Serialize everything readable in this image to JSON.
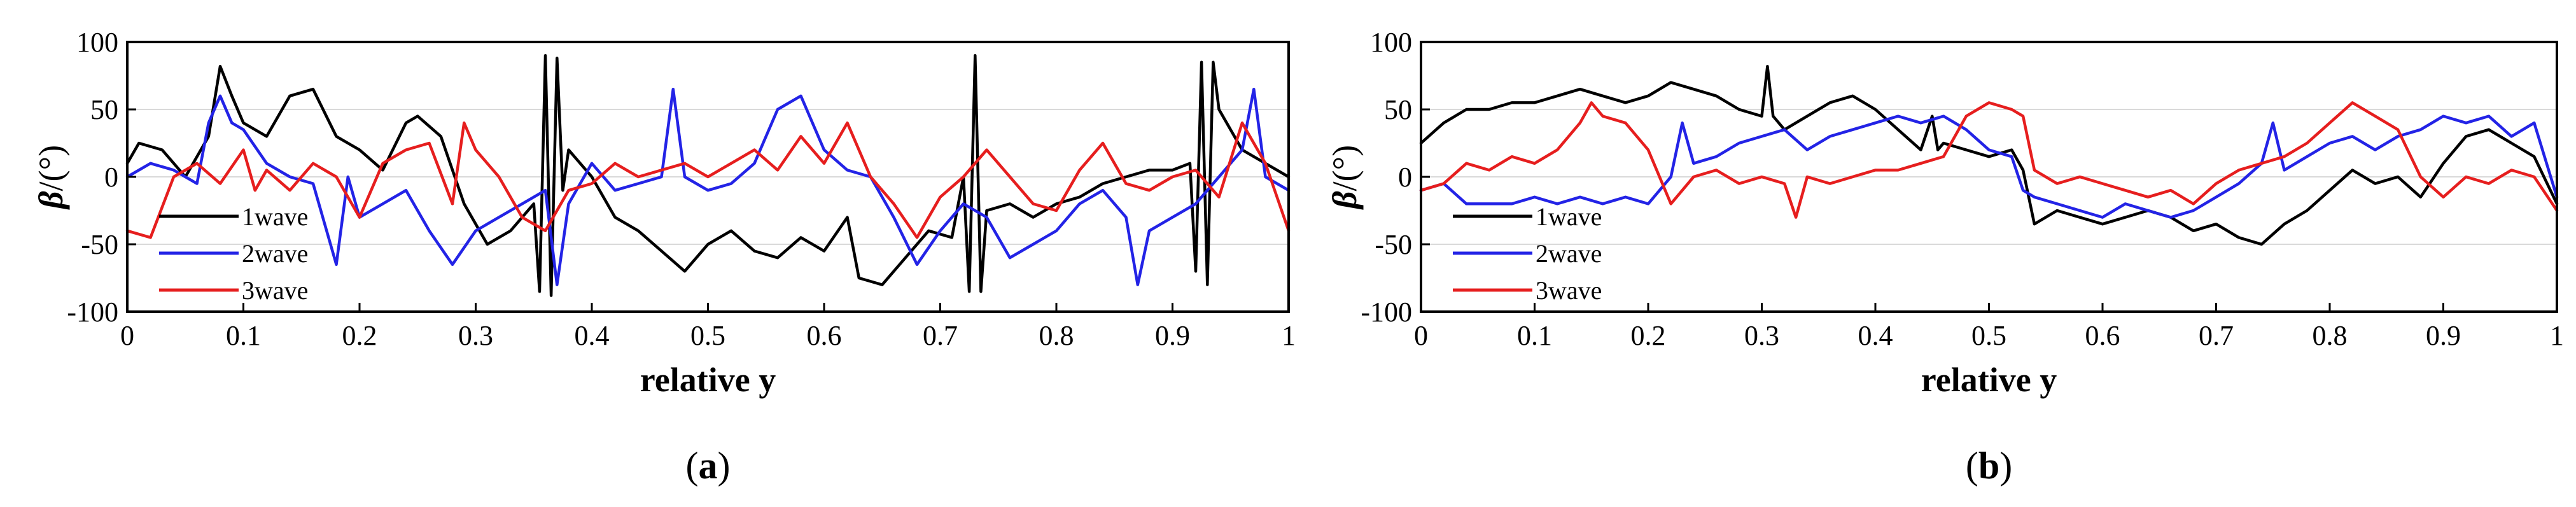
{
  "figure": {
    "panels": [
      {
        "caption": {
          "open": "(",
          "letter": "a",
          "close": ")"
        },
        "ylabel": {
          "symbol": "β",
          "unit": "/(°)"
        },
        "xlabel": "relative y"
      },
      {
        "caption": {
          "open": "(",
          "letter": "b",
          "close": ")"
        },
        "ylabel": {
          "symbol": "β",
          "unit": "/(°)"
        },
        "xlabel": "relative y"
      }
    ]
  },
  "chart_data": [
    {
      "type": "line",
      "xlabel": "relative y",
      "ylabel": "β/(°)",
      "xlim": [
        0,
        1
      ],
      "ylim": [
        -100,
        100
      ],
      "xticks": [
        "0",
        "0.1",
        "0.2",
        "0.3",
        "0.4",
        "0.5",
        "0.6",
        "0.7",
        "0.8",
        "0.9",
        "1"
      ],
      "yticks": [
        "100",
        "50",
        "0",
        "-50",
        "-100"
      ],
      "grid": "horizontal",
      "legend_position": "lower-left",
      "series": [
        {
          "name": "1wave",
          "color": "#000000",
          "x": [
            0,
            0.01,
            0.03,
            0.05,
            0.07,
            0.08,
            0.09,
            0.1,
            0.12,
            0.14,
            0.16,
            0.18,
            0.2,
            0.22,
            0.24,
            0.25,
            0.27,
            0.29,
            0.31,
            0.33,
            0.35,
            0.355,
            0.36,
            0.365,
            0.37,
            0.375,
            0.38,
            0.4,
            0.42,
            0.44,
            0.46,
            0.48,
            0.5,
            0.52,
            0.54,
            0.56,
            0.58,
            0.6,
            0.62,
            0.63,
            0.65,
            0.67,
            0.69,
            0.71,
            0.72,
            0.725,
            0.73,
            0.735,
            0.74,
            0.76,
            0.78,
            0.8,
            0.82,
            0.84,
            0.86,
            0.88,
            0.9,
            0.915,
            0.92,
            0.925,
            0.93,
            0.935,
            0.94,
            0.96,
            0.98,
            1
          ],
          "y": [
            10,
            25,
            20,
            0,
            30,
            82,
            60,
            40,
            30,
            60,
            65,
            30,
            20,
            5,
            40,
            45,
            30,
            -20,
            -50,
            -40,
            -20,
            -85,
            90,
            -88,
            88,
            -10,
            20,
            0,
            -30,
            -40,
            -55,
            -70,
            -50,
            -40,
            -55,
            -60,
            -45,
            -55,
            -30,
            -75,
            -80,
            -60,
            -40,
            -45,
            0,
            -85,
            90,
            -85,
            -25,
            -20,
            -30,
            -20,
            -15,
            -5,
            0,
            5,
            5,
            10,
            -70,
            85,
            -80,
            85,
            50,
            20,
            10,
            0
          ]
        },
        {
          "name": "2wave",
          "color": "#2323e6",
          "x": [
            0,
            0.02,
            0.04,
            0.06,
            0.07,
            0.08,
            0.09,
            0.1,
            0.12,
            0.14,
            0.16,
            0.18,
            0.19,
            0.2,
            0.22,
            0.24,
            0.26,
            0.28,
            0.3,
            0.32,
            0.34,
            0.36,
            0.37,
            0.38,
            0.4,
            0.42,
            0.44,
            0.46,
            0.47,
            0.48,
            0.5,
            0.52,
            0.54,
            0.56,
            0.58,
            0.6,
            0.62,
            0.64,
            0.66,
            0.68,
            0.7,
            0.72,
            0.74,
            0.76,
            0.78,
            0.8,
            0.82,
            0.84,
            0.86,
            0.87,
            0.88,
            0.9,
            0.92,
            0.94,
            0.96,
            0.97,
            0.98,
            1
          ],
          "y": [
            0,
            10,
            5,
            -5,
            40,
            60,
            40,
            35,
            10,
            0,
            -5,
            -65,
            0,
            -30,
            -20,
            -10,
            -40,
            -65,
            -40,
            -30,
            -20,
            -10,
            -80,
            -20,
            10,
            -10,
            -5,
            0,
            65,
            0,
            -10,
            -5,
            10,
            50,
            60,
            20,
            5,
            0,
            -30,
            -65,
            -40,
            -20,
            -30,
            -60,
            -50,
            -40,
            -20,
            -10,
            -30,
            -80,
            -40,
            -30,
            -20,
            0,
            20,
            65,
            0,
            -10
          ]
        },
        {
          "name": "3wave",
          "color": "#e61e1e",
          "x": [
            0,
            0.02,
            0.04,
            0.06,
            0.08,
            0.1,
            0.11,
            0.12,
            0.14,
            0.16,
            0.18,
            0.2,
            0.22,
            0.24,
            0.26,
            0.28,
            0.29,
            0.3,
            0.32,
            0.34,
            0.36,
            0.38,
            0.4,
            0.42,
            0.44,
            0.46,
            0.48,
            0.5,
            0.52,
            0.54,
            0.56,
            0.58,
            0.6,
            0.62,
            0.64,
            0.66,
            0.68,
            0.7,
            0.72,
            0.74,
            0.76,
            0.78,
            0.8,
            0.82,
            0.84,
            0.86,
            0.88,
            0.9,
            0.92,
            0.94,
            0.96,
            0.98,
            1
          ],
          "y": [
            -40,
            -45,
            0,
            10,
            -5,
            20,
            -10,
            5,
            -10,
            10,
            0,
            -30,
            10,
            20,
            25,
            -20,
            40,
            20,
            0,
            -30,
            -40,
            -10,
            -5,
            10,
            0,
            5,
            10,
            0,
            10,
            20,
            5,
            30,
            10,
            40,
            0,
            -20,
            -45,
            -15,
            0,
            20,
            0,
            -20,
            -25,
            5,
            25,
            -5,
            -10,
            0,
            5,
            -15,
            40,
            10,
            -40
          ]
        }
      ]
    },
    {
      "type": "line",
      "xlabel": "relative y",
      "ylabel": "β/(°)",
      "xlim": [
        0,
        1
      ],
      "ylim": [
        -100,
        100
      ],
      "xticks": [
        "0",
        "0.1",
        "0.2",
        "0.3",
        "0.4",
        "0.5",
        "0.6",
        "0.7",
        "0.8",
        "0.9",
        "1"
      ],
      "yticks": [
        "100",
        "50",
        "0",
        "-50",
        "-100"
      ],
      "grid": "horizontal",
      "legend_position": "lower-left",
      "series": [
        {
          "name": "1wave",
          "color": "#000000",
          "x": [
            0,
            0.02,
            0.04,
            0.06,
            0.08,
            0.1,
            0.12,
            0.14,
            0.16,
            0.18,
            0.2,
            0.22,
            0.24,
            0.26,
            0.28,
            0.3,
            0.305,
            0.31,
            0.32,
            0.34,
            0.36,
            0.38,
            0.4,
            0.42,
            0.44,
            0.45,
            0.455,
            0.46,
            0.48,
            0.5,
            0.52,
            0.53,
            0.54,
            0.56,
            0.58,
            0.6,
            0.62,
            0.64,
            0.66,
            0.68,
            0.7,
            0.72,
            0.74,
            0.76,
            0.78,
            0.8,
            0.82,
            0.84,
            0.86,
            0.88,
            0.9,
            0.92,
            0.94,
            0.96,
            0.98,
            1
          ],
          "y": [
            25,
            40,
            50,
            50,
            55,
            55,
            60,
            65,
            60,
            55,
            60,
            70,
            65,
            60,
            50,
            45,
            82,
            45,
            35,
            45,
            55,
            60,
            50,
            35,
            20,
            45,
            20,
            25,
            20,
            15,
            20,
            5,
            -35,
            -25,
            -30,
            -35,
            -30,
            -25,
            -30,
            -40,
            -35,
            -45,
            -50,
            -35,
            -25,
            -10,
            5,
            -5,
            0,
            -15,
            10,
            30,
            35,
            25,
            15,
            -20
          ]
        },
        {
          "name": "2wave",
          "color": "#2323e6",
          "x": [
            0,
            0.02,
            0.04,
            0.06,
            0.08,
            0.1,
            0.12,
            0.14,
            0.16,
            0.18,
            0.2,
            0.22,
            0.23,
            0.24,
            0.26,
            0.28,
            0.3,
            0.32,
            0.34,
            0.36,
            0.38,
            0.4,
            0.42,
            0.44,
            0.46,
            0.48,
            0.5,
            0.52,
            0.53,
            0.54,
            0.56,
            0.58,
            0.6,
            0.62,
            0.64,
            0.66,
            0.68,
            0.7,
            0.72,
            0.74,
            0.75,
            0.76,
            0.78,
            0.8,
            0.82,
            0.84,
            0.86,
            0.88,
            0.9,
            0.92,
            0.94,
            0.96,
            0.98,
            1
          ],
          "y": [
            -10,
            -5,
            -20,
            -20,
            -20,
            -15,
            -20,
            -15,
            -20,
            -15,
            -20,
            0,
            40,
            10,
            15,
            25,
            30,
            35,
            20,
            30,
            35,
            40,
            45,
            40,
            45,
            35,
            20,
            15,
            -10,
            -15,
            -20,
            -25,
            -30,
            -20,
            -25,
            -30,
            -25,
            -15,
            -5,
            10,
            40,
            5,
            15,
            25,
            30,
            20,
            30,
            35,
            45,
            40,
            45,
            30,
            40,
            -15
          ]
        },
        {
          "name": "3wave",
          "color": "#e61e1e",
          "x": [
            0,
            0.02,
            0.04,
            0.06,
            0.08,
            0.1,
            0.12,
            0.14,
            0.15,
            0.16,
            0.18,
            0.2,
            0.22,
            0.24,
            0.26,
            0.28,
            0.3,
            0.32,
            0.33,
            0.34,
            0.36,
            0.38,
            0.4,
            0.42,
            0.44,
            0.46,
            0.48,
            0.5,
            0.52,
            0.53,
            0.54,
            0.56,
            0.58,
            0.6,
            0.62,
            0.64,
            0.66,
            0.68,
            0.7,
            0.72,
            0.74,
            0.76,
            0.78,
            0.8,
            0.82,
            0.84,
            0.86,
            0.88,
            0.9,
            0.92,
            0.94,
            0.96,
            0.98,
            1
          ],
          "y": [
            -10,
            -5,
            10,
            5,
            15,
            10,
            20,
            40,
            55,
            45,
            40,
            20,
            -20,
            0,
            5,
            -5,
            0,
            -5,
            -30,
            0,
            -5,
            0,
            5,
            5,
            10,
            15,
            45,
            55,
            50,
            45,
            5,
            -5,
            0,
            -5,
            -10,
            -15,
            -10,
            -20,
            -5,
            5,
            10,
            15,
            25,
            40,
            55,
            45,
            35,
            0,
            -15,
            0,
            -5,
            5,
            0,
            -25
          ]
        }
      ]
    }
  ]
}
